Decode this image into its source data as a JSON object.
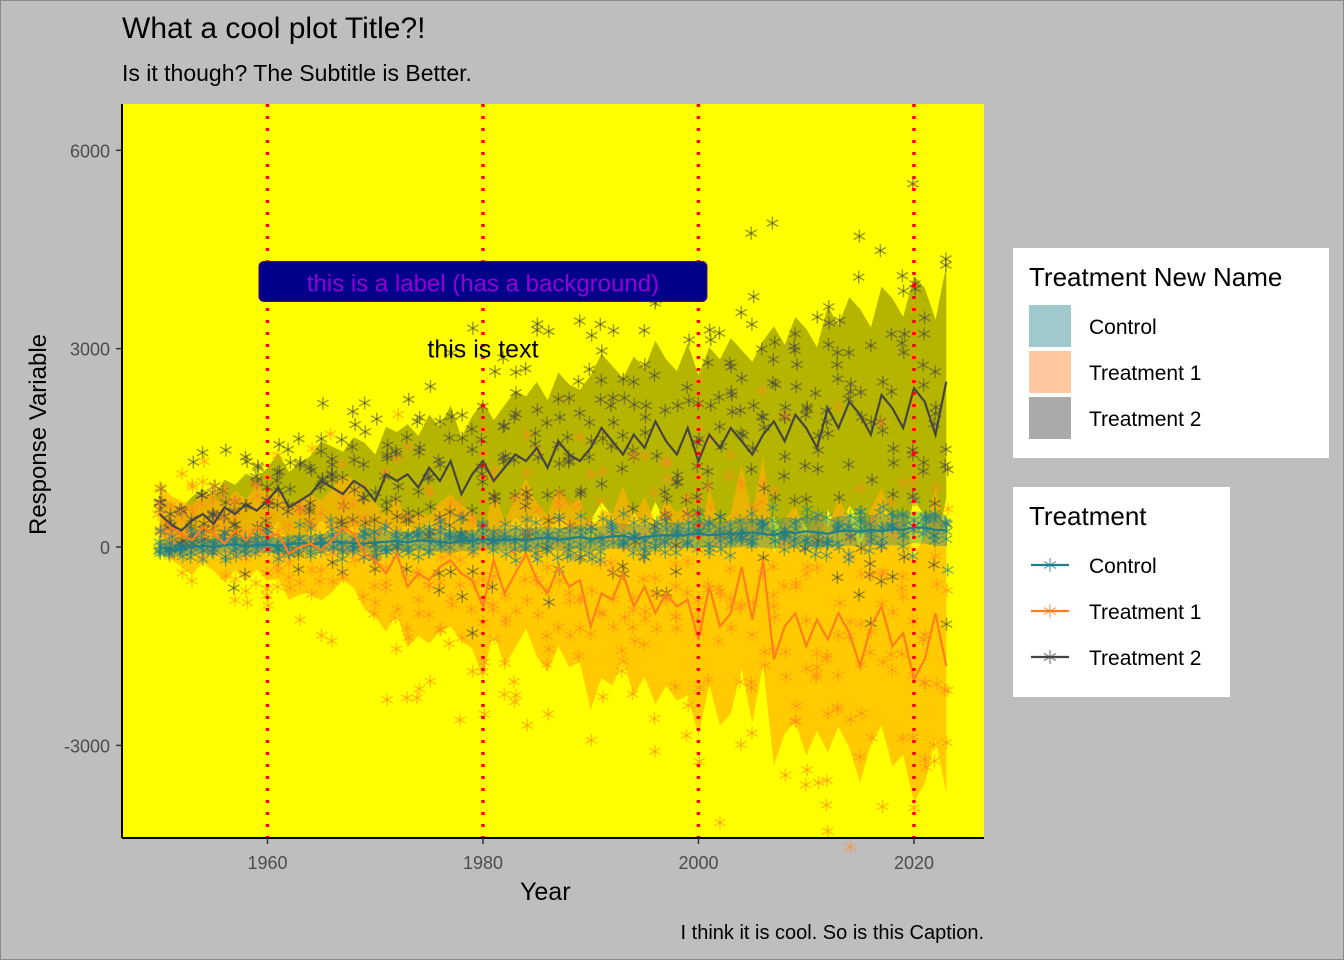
{
  "chart_data": {
    "type": "line",
    "title": "What a cool plot Title?!",
    "subtitle": "Is it though? The Subtitle is Better.",
    "caption": "I think it is cool. So is this Caption.",
    "xlabel": "Year",
    "ylabel": "Response Variable",
    "xlim": [
      1946.5,
      2026.5
    ],
    "ylim": [
      -4400,
      6700
    ],
    "x_ticks": [
      1960,
      1980,
      2000,
      2020
    ],
    "y_ticks": [
      -3000,
      0,
      3000,
      6000
    ],
    "vlines": [
      1960,
      1980,
      2000,
      2020
    ],
    "annotations": {
      "label": {
        "text": "this is a label (has a background)",
        "x": 1980,
        "y": 4000
      },
      "text": {
        "text": "this is text",
        "x": 1980,
        "y": 3000
      }
    },
    "panel_background": "#ffff00",
    "grid": false,
    "colors": {
      "Control": "#1f7f8a",
      "Treatment 1": "#ff7f1f",
      "Treatment 2": "#454545",
      "vline": "#ff0000",
      "label_bg": "#00008b",
      "label_text": "#9400d3"
    },
    "x": [
      1950,
      1951,
      1952,
      1953,
      1954,
      1955,
      1956,
      1957,
      1958,
      1959,
      1960,
      1961,
      1962,
      1963,
      1964,
      1965,
      1966,
      1967,
      1968,
      1969,
      1970,
      1971,
      1972,
      1973,
      1974,
      1975,
      1976,
      1977,
      1978,
      1979,
      1980,
      1981,
      1982,
      1983,
      1984,
      1985,
      1986,
      1987,
      1988,
      1989,
      1990,
      1991,
      1992,
      1993,
      1994,
      1995,
      1996,
      1997,
      1998,
      1999,
      2000,
      2001,
      2002,
      2003,
      2004,
      2005,
      2006,
      2007,
      2008,
      2009,
      2010,
      2011,
      2012,
      2013,
      2014,
      2015,
      2016,
      2017,
      2018,
      2019,
      2020,
      2021,
      2022,
      2023
    ],
    "series": [
      {
        "name": "Control",
        "mean": [
          0,
          -50,
          -20,
          0,
          20,
          0,
          30,
          40,
          10,
          30,
          40,
          20,
          40,
          60,
          40,
          50,
          80,
          70,
          60,
          50,
          70,
          80,
          90,
          70,
          100,
          90,
          80,
          60,
          100,
          90,
          120,
          100,
          110,
          120,
          100,
          130,
          140,
          110,
          130,
          150,
          120,
          140,
          160,
          170,
          130,
          150,
          170,
          180,
          170,
          190,
          200,
          180,
          190,
          200,
          210,
          220,
          200,
          180,
          230,
          210,
          240,
          220,
          200,
          240,
          250,
          230,
          260,
          240,
          270,
          260,
          300,
          290,
          260,
          250
        ],
        "spread": [
          120,
          120,
          120,
          120,
          120,
          120,
          120,
          120,
          120,
          120,
          130,
          130,
          130,
          130,
          130,
          140,
          140,
          140,
          140,
          140,
          150,
          150,
          150,
          150,
          150,
          150,
          160,
          160,
          160,
          160,
          160,
          160,
          170,
          170,
          170,
          170,
          170,
          170,
          180,
          180,
          180,
          180,
          180,
          190,
          190,
          190,
          190,
          190,
          200,
          200,
          200,
          200,
          200,
          210,
          210,
          210,
          210,
          210,
          220,
          220,
          220,
          220,
          220,
          230,
          230,
          230,
          230,
          230,
          240,
          240,
          240,
          240,
          240,
          240
        ]
      },
      {
        "name": "Treatment 1",
        "mean": [
          500,
          300,
          200,
          100,
          300,
          200,
          50,
          250,
          100,
          300,
          150,
          200,
          -100,
          0,
          50,
          -50,
          100,
          300,
          200,
          -100,
          -200,
          -400,
          -100,
          -600,
          -400,
          -500,
          -300,
          -200,
          -400,
          -500,
          -900,
          -200,
          -700,
          -400,
          -100,
          -500,
          -700,
          -300,
          -600,
          -500,
          -1200,
          -700,
          -800,
          -400,
          -900,
          -600,
          -1000,
          -700,
          -900,
          -800,
          -1400,
          -600,
          -1200,
          -1000,
          -300,
          -1100,
          -200,
          -1700,
          -1200,
          -1000,
          -1500,
          -1100,
          -1400,
          -1000,
          -1300,
          -1800,
          -1200,
          -900,
          -1500,
          -1300,
          -2000,
          -1700,
          -1000,
          -1800
        ],
        "spread": [
          450,
          480,
          500,
          520,
          540,
          560,
          580,
          600,
          620,
          640,
          660,
          680,
          700,
          720,
          740,
          760,
          780,
          800,
          820,
          840,
          860,
          880,
          900,
          920,
          940,
          960,
          980,
          1000,
          1020,
          1040,
          1060,
          1080,
          1100,
          1120,
          1140,
          1160,
          1180,
          1200,
          1220,
          1240,
          1260,
          1280,
          1300,
          1320,
          1340,
          1360,
          1380,
          1400,
          1420,
          1440,
          1460,
          1480,
          1500,
          1520,
          1540,
          1560,
          1580,
          1600,
          1620,
          1640,
          1660,
          1680,
          1700,
          1720,
          1740,
          1760,
          1780,
          1800,
          1820,
          1840,
          1860,
          1880,
          1900,
          1920
        ]
      },
      {
        "name": "Treatment 2",
        "mean": [
          500,
          350,
          250,
          400,
          500,
          350,
          600,
          500,
          650,
          550,
          700,
          900,
          600,
          700,
          800,
          1000,
          900,
          800,
          1000,
          900,
          700,
          1100,
          1000,
          1100,
          900,
          1200,
          1000,
          1300,
          800,
          1100,
          1300,
          1000,
          1200,
          1400,
          1300,
          1500,
          1200,
          1600,
          1400,
          1300,
          1500,
          1800,
          1600,
          1400,
          1700,
          1500,
          1900,
          1600,
          1400,
          1800,
          1300,
          1700,
          1500,
          1800,
          1600,
          1400,
          1700,
          1900,
          1600,
          2000,
          1800,
          1500,
          2100,
          1800,
          2200,
          2000,
          1700,
          2300,
          2100,
          1800,
          2400,
          2200,
          1700,
          2500
        ],
        "spread": [
          300,
          320,
          340,
          360,
          380,
          400,
          420,
          440,
          460,
          480,
          500,
          520,
          540,
          560,
          580,
          600,
          620,
          640,
          660,
          680,
          700,
          720,
          740,
          760,
          780,
          800,
          820,
          840,
          860,
          880,
          900,
          920,
          940,
          960,
          980,
          1000,
          1020,
          1040,
          1060,
          1080,
          1100,
          1120,
          1140,
          1160,
          1180,
          1200,
          1220,
          1240,
          1260,
          1280,
          1300,
          1320,
          1340,
          1360,
          1380,
          1400,
          1420,
          1440,
          1460,
          1480,
          1500,
          1520,
          1540,
          1560,
          1580,
          1600,
          1620,
          1640,
          1660,
          1680,
          1700,
          1720,
          1740,
          1760
        ]
      }
    ],
    "legend_fill": {
      "title": "Treatment New Name",
      "items": [
        "Control",
        "Treatment 1",
        "Treatment 2"
      ],
      "colors": [
        "#9fc9cb",
        "#ffc89e",
        "#aaaaaa"
      ]
    },
    "legend_line": {
      "title": "Treatment",
      "items": [
        "Control",
        "Treatment 1",
        "Treatment 2"
      ],
      "colors": [
        "#1f7f8a",
        "#ff7f1f",
        "#454545"
      ]
    },
    "legend_position": "right"
  }
}
